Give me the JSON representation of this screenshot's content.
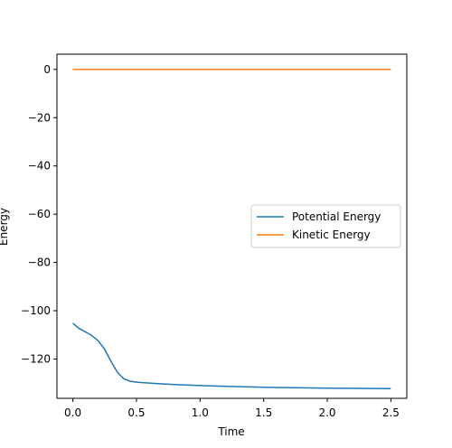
{
  "chart_data": {
    "type": "line",
    "title": "",
    "xlabel": "Time",
    "ylabel": "Energy",
    "xlim": [
      -0.125,
      2.625
    ],
    "ylim": [
      -136.3,
      6.3
    ],
    "xticks": [
      0.0,
      0.5,
      1.0,
      1.5,
      2.0,
      2.5
    ],
    "xtick_labels": [
      "0.0",
      "0.5",
      "1.0",
      "1.5",
      "2.0",
      "2.5"
    ],
    "yticks": [
      0,
      -20,
      -40,
      -60,
      -80,
      -100,
      -120
    ],
    "ytick_labels": [
      "0",
      "−20",
      "−40",
      "−60",
      "−80",
      "−100",
      "−120"
    ],
    "grid": false,
    "legend_position": "center-right",
    "series": [
      {
        "name": "Potential Energy",
        "color": "#1f77b4",
        "x": [
          0.0,
          0.05,
          0.1,
          0.15,
          0.2,
          0.25,
          0.3,
          0.35,
          0.4,
          0.45,
          0.5,
          0.6,
          0.7,
          0.8,
          1.0,
          1.25,
          1.5,
          1.75,
          2.0,
          2.25,
          2.5
        ],
        "y": [
          -105.2,
          -107.4,
          -108.8,
          -110.3,
          -112.5,
          -116.0,
          -121.0,
          -125.5,
          -128.2,
          -129.2,
          -129.6,
          -130.0,
          -130.3,
          -130.6,
          -131.0,
          -131.4,
          -131.7,
          -131.9,
          -132.1,
          -132.2,
          -132.3
        ]
      },
      {
        "name": "Kinetic Energy",
        "color": "#ff7f0e",
        "x": [
          0.0,
          2.5
        ],
        "y": [
          0.0,
          0.0
        ]
      }
    ]
  }
}
